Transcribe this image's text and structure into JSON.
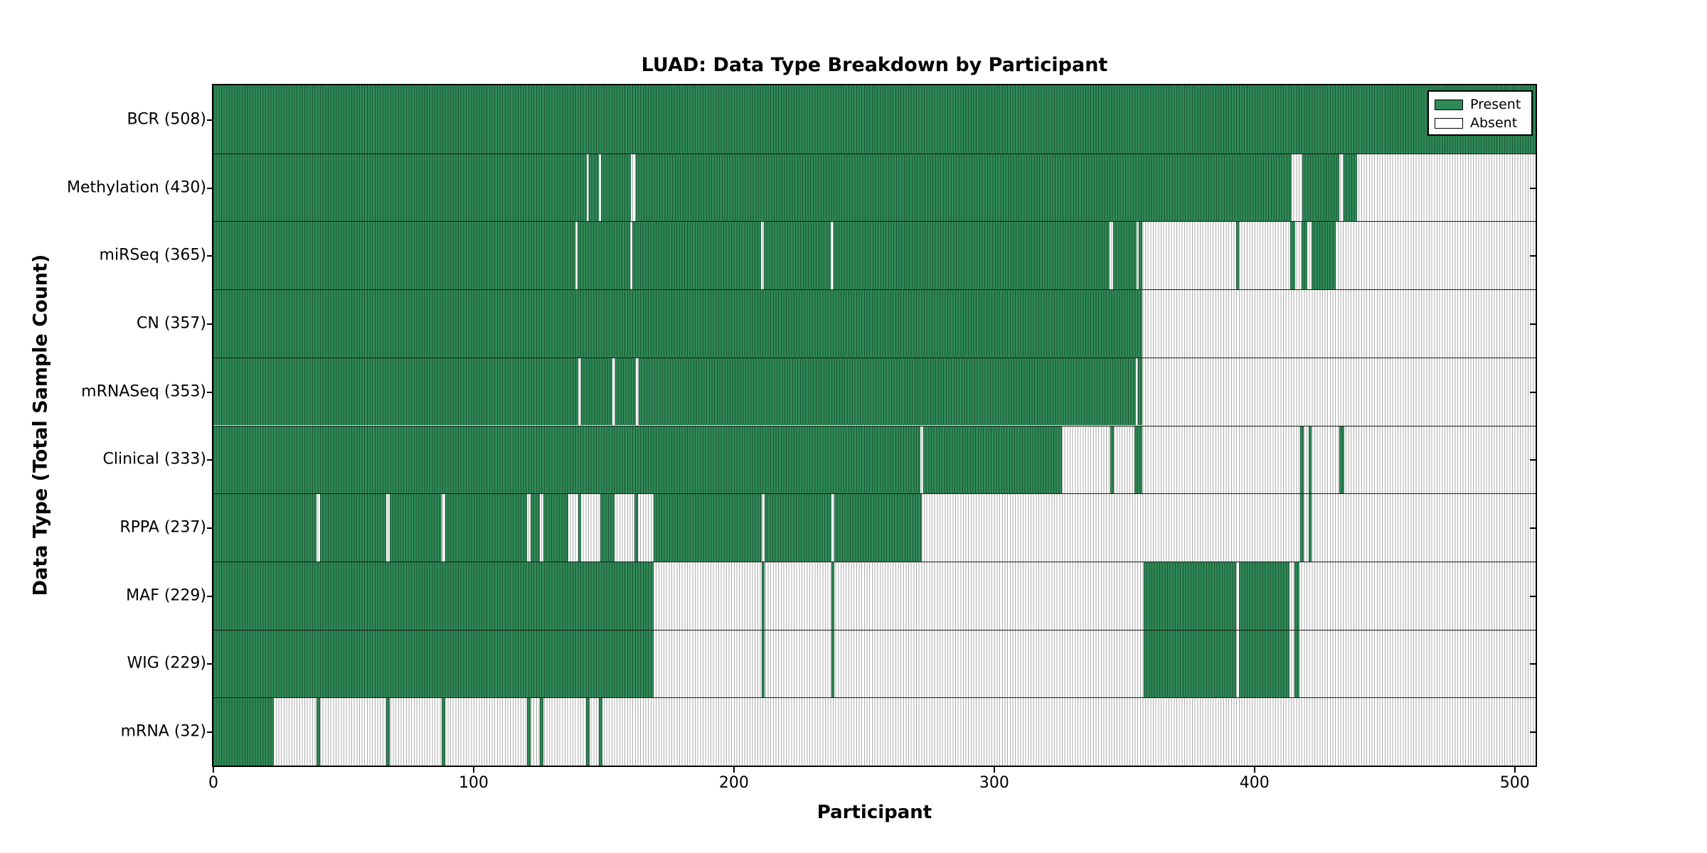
{
  "title": "LUAD: Data Type Breakdown by Participant",
  "xlabel": "Participant",
  "ylabel": "Data Type (Total Sample Count)",
  "legend": {
    "present_label": "Present",
    "absent_label": "Absent"
  },
  "colors": {
    "present_fill": "#2f8a57",
    "present_line": "#1d5535",
    "absent_fill": "#ffffff",
    "absent_line": "#ababab",
    "plot_border": "#000000",
    "row_divider": "#1c1c1c",
    "text": "#000000"
  },
  "chart_data": {
    "type": "heatmap",
    "title": "LUAD: Data Type Breakdown by Participant",
    "xlabel": "Participant",
    "ylabel": "Data Type (Total Sample Count)",
    "xlim": [
      0,
      508
    ],
    "x_ticks": [
      0,
      100,
      200,
      300,
      400,
      500
    ],
    "grid": false,
    "legend_position": "upper right",
    "legend_entries": [
      "Present",
      "Absent"
    ],
    "value_encoding": "green = data type present for participant, white = absent",
    "rows": [
      {
        "label": "BCR (508)",
        "name": "BCR",
        "total": 508,
        "present_segments": [
          [
            0,
            508
          ]
        ]
      },
      {
        "label": "Methylation (430)",
        "name": "Methylation",
        "total": 430,
        "present_segments": [
          [
            0,
            143.4
          ],
          [
            144.4,
            148
          ],
          [
            149,
            160.5
          ],
          [
            162.3,
            414.3
          ],
          [
            418.3,
            432.5
          ],
          [
            434.3,
            439.4
          ]
        ]
      },
      {
        "label": "miRSeq (365)",
        "name": "miRSeq",
        "total": 365,
        "present_segments": [
          [
            0,
            139
          ],
          [
            140,
            160
          ],
          [
            161,
            210.3
          ],
          [
            211.5,
            237.1
          ],
          [
            238.3,
            344.3
          ],
          [
            345.7,
            354.6
          ],
          [
            355.5,
            356.9
          ],
          [
            392.9,
            394
          ],
          [
            413.7,
            415.7
          ],
          [
            418.1,
            420.3
          ],
          [
            421.8,
            431.2
          ]
        ]
      },
      {
        "label": "CN (357)",
        "name": "CN",
        "total": 357,
        "present_segments": [
          [
            0,
            356.9
          ]
        ]
      },
      {
        "label": "mRNASeq (353)",
        "name": "mRNASeq",
        "total": 353,
        "present_segments": [
          [
            0,
            140.2
          ],
          [
            141.2,
            153.4
          ],
          [
            154.4,
            162.3
          ],
          [
            163.3,
            354.3
          ],
          [
            355.2,
            356.9
          ]
        ]
      },
      {
        "label": "Clinical (333)",
        "name": "Clinical",
        "total": 333,
        "present_segments": [
          [
            0,
            271.6
          ],
          [
            272.8,
            326.1
          ],
          [
            344.6,
            346
          ],
          [
            354,
            356.9
          ],
          [
            417.6,
            419
          ],
          [
            420.7,
            421.8
          ],
          [
            432.7,
            434.5
          ]
        ]
      },
      {
        "label": "RPPA (237)",
        "name": "RPPA",
        "total": 237,
        "present_segments": [
          [
            0,
            39.6
          ],
          [
            41,
            66.4
          ],
          [
            67.8,
            87.8
          ],
          [
            89,
            120.6
          ],
          [
            122,
            125.4
          ],
          [
            126.8,
            136.3
          ],
          [
            140.1,
            141.4
          ],
          [
            148.7,
            154.2
          ],
          [
            161.7,
            163.2
          ],
          [
            169.1,
            210.6
          ],
          [
            211.8,
            237.4
          ],
          [
            238.6,
            272.1
          ],
          [
            417.6,
            419
          ],
          [
            420.7,
            421.8
          ]
        ]
      },
      {
        "label": "MAF (229)",
        "name": "MAF",
        "total": 229,
        "present_segments": [
          [
            0,
            169.1
          ],
          [
            210.6,
            211.8
          ],
          [
            237.4,
            238.6
          ],
          [
            357.3,
            392.9
          ],
          [
            394,
            413.4
          ],
          [
            415.4,
            417.4
          ]
        ]
      },
      {
        "label": "WIG (229)",
        "name": "WIG",
        "total": 229,
        "present_segments": [
          [
            0,
            169.1
          ],
          [
            210.6,
            211.8
          ],
          [
            237.4,
            238.6
          ],
          [
            357.3,
            392.9
          ],
          [
            394,
            413.4
          ],
          [
            415.4,
            417.4
          ]
        ]
      },
      {
        "label": "mRNA (32)",
        "name": "mRNA",
        "total": 32,
        "present_segments": [
          [
            0,
            23.2
          ],
          [
            39.6,
            41
          ],
          [
            66.4,
            67.8
          ],
          [
            87.8,
            89
          ],
          [
            120.6,
            121.9
          ],
          [
            125.4,
            126.8
          ],
          [
            143.3,
            144.6
          ],
          [
            148.2,
            149.5
          ]
        ]
      }
    ]
  }
}
